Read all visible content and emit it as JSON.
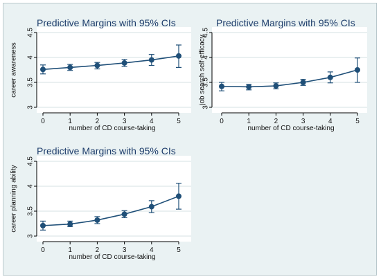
{
  "chart_data": [
    {
      "type": "line",
      "title": "Predictive Margins with 95% CIs",
      "xlabel": "number of CD course-taking",
      "ylabel": "career awareness",
      "x": [
        0,
        1,
        2,
        3,
        4,
        5
      ],
      "y": [
        3.76,
        3.8,
        3.84,
        3.89,
        3.95,
        4.03
      ],
      "ci_low": [
        3.67,
        3.74,
        3.77,
        3.82,
        3.84,
        3.8
      ],
      "ci_high": [
        3.85,
        3.86,
        3.9,
        3.96,
        4.06,
        4.25
      ],
      "xlim": [
        0,
        5
      ],
      "ylim": [
        3,
        4.5
      ],
      "xticks": [
        "0",
        "1",
        "2",
        "3",
        "4",
        "5"
      ],
      "yticks": [
        "3",
        "3.5",
        "4",
        "4.5"
      ],
      "grid": "horizontal",
      "line_color": "#1f4f78",
      "grid_color": "#d5e0e3",
      "title_color": "#1e3d6b"
    },
    {
      "type": "line",
      "title": "Predictive Margins with 95% CIs",
      "xlabel": "number of CD course-taking",
      "ylabel": "job search self-efficacy",
      "x": [
        0,
        1,
        2,
        3,
        4,
        5
      ],
      "y": [
        3.42,
        3.41,
        3.43,
        3.5,
        3.6,
        3.75
      ],
      "ci_low": [
        3.33,
        3.35,
        3.37,
        3.44,
        3.49,
        3.5
      ],
      "ci_high": [
        3.5,
        3.46,
        3.49,
        3.56,
        3.71,
        3.99
      ],
      "xlim": [
        0,
        5
      ],
      "ylim": [
        3,
        4.5
      ],
      "xticks": [
        "0",
        "1",
        "2",
        "3",
        "4",
        "5"
      ],
      "yticks": [
        "3",
        "3.5",
        "4",
        "4.5"
      ],
      "grid": "horizontal",
      "line_color": "#1f4f78",
      "grid_color": "#d5e0e3",
      "title_color": "#1e3d6b"
    },
    {
      "type": "line",
      "title": "Predictive Margins with 95% CIs",
      "xlabel": "number of CD course-taking",
      "ylabel": "career planning ability",
      "x": [
        0,
        1,
        2,
        3,
        4,
        5
      ],
      "y": [
        3.21,
        3.24,
        3.32,
        3.44,
        3.59,
        3.8
      ],
      "ci_low": [
        3.12,
        3.19,
        3.25,
        3.37,
        3.47,
        3.54
      ],
      "ci_high": [
        3.3,
        3.3,
        3.39,
        3.51,
        3.71,
        4.06
      ],
      "xlim": [
        0,
        5
      ],
      "ylim": [
        3,
        4.5
      ],
      "xticks": [
        "0",
        "1",
        "2",
        "3",
        "4",
        "5"
      ],
      "yticks": [
        "3",
        "3.5",
        "4",
        "4.5"
      ],
      "grid": "horizontal",
      "line_color": "#1f4f78",
      "grid_color": "#d5e0e3",
      "title_color": "#1e3d6b"
    }
  ]
}
